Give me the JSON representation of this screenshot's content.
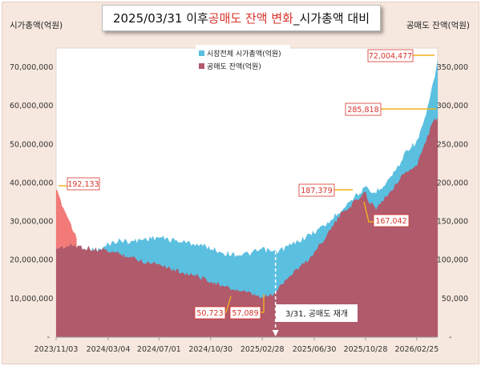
{
  "title": {
    "prefix": "2025/03/31 이후 ",
    "highlight": "공매도 잔액 변화",
    "suffix": "_시가총액 대비"
  },
  "colors": {
    "market_cap": "#5bbfe0",
    "short_balance": "#b05a6c",
    "short_balance_early": "#f27a78",
    "callout": "#f2b01e",
    "callout_text": "#d8342b"
  },
  "chart_data": {
    "type": "area",
    "title": "2025/03/31 이후 공매도 잔액 변화_시가총액 대비",
    "left_axis_label": "시가총액(억원)",
    "right_axis_label": "공매도 잔액(억원)",
    "left_ylim": [
      0,
      75000000
    ],
    "right_ylim": [
      0,
      375000
    ],
    "left_ticks": [
      {
        "value": 10000000,
        "label": "10,000,000"
      },
      {
        "value": 20000000,
        "label": "20,000,000"
      },
      {
        "value": 30000000,
        "label": "30,000,000"
      },
      {
        "value": 40000000,
        "label": "40,000,000"
      },
      {
        "value": 50000000,
        "label": "50,000,000"
      },
      {
        "value": 60000000,
        "label": "60,000,000"
      },
      {
        "value": 70000000,
        "label": "70,000,000"
      }
    ],
    "right_ticks": [
      {
        "value": 50000,
        "label": "50,000"
      },
      {
        "value": 100000,
        "label": "100,000"
      },
      {
        "value": 150000,
        "label": "150,000"
      },
      {
        "value": 200000,
        "label": "200,000"
      },
      {
        "value": 250000,
        "label": "250,000"
      },
      {
        "value": 300000,
        "label": "300,000"
      },
      {
        "value": 350000,
        "label": "350,000"
      }
    ],
    "x_ticks": [
      "2023/11/03",
      "2024/03/04",
      "2024/07/01",
      "2024/10/30",
      "2025/02/28",
      "2025/06/30",
      "2025/10/28",
      "2026/02/25"
    ],
    "x_range": [
      "2023/11/03",
      "2026/04/15"
    ],
    "legend_position": "top-left",
    "series": [
      {
        "name": "시장전체 시가총액(억원)",
        "axis": "left",
        "x": [
          "2023/11/03",
          "2023/11/20",
          "2023/12/15",
          "2024/01/15",
          "2024/02/15",
          "2024/03/04",
          "2024/04/01",
          "2024/05/01",
          "2024/06/01",
          "2024/07/01",
          "2024/08/01",
          "2024/09/01",
          "2024/10/01",
          "2024/10/30",
          "2024/12/01",
          "2025/01/01",
          "2025/02/01",
          "2025/02/28",
          "2025/03/31",
          "2025/04/15",
          "2025/05/15",
          "2025/06/15",
          "2025/06/30",
          "2025/08/01",
          "2025/09/01",
          "2025/10/01",
          "2025/10/28",
          "2025/11/15",
          "2025/12/15",
          "2026/01/15",
          "2026/02/01",
          "2026/02/25",
          "2026/03/15",
          "2026/04/01",
          "2026/04/15"
        ],
        "values": [
          23100000,
          23400000,
          23800000,
          23100000,
          22600000,
          24200000,
          25100000,
          24800000,
          25600000,
          25900000,
          25200000,
          24600000,
          24100000,
          23100000,
          21800000,
          21400000,
          21700000,
          22800000,
          22000000,
          22800000,
          24400000,
          26300000,
          27300000,
          29600000,
          33100000,
          36400000,
          38600000,
          37200000,
          40100000,
          44600000,
          48600000,
          50600000,
          56000000,
          64000000,
          72004477
        ]
      },
      {
        "name": "공매도 잔액(억원)",
        "axis": "right",
        "x": [
          "2023/11/03",
          "2023/11/20",
          "2023/12/05",
          "2023/12/20",
          "2024/01/10",
          "2024/02/01",
          "2024/03/04",
          "2024/04/01",
          "2024/05/01",
          "2024/06/01",
          "2024/07/01",
          "2024/08/01",
          "2024/09/01",
          "2024/10/01",
          "2024/10/30",
          "2024/12/01",
          "2025/01/15",
          "2025/02/28",
          "2025/03/31",
          "2025/04/15",
          "2025/05/15",
          "2025/06/15",
          "2025/06/30",
          "2025/08/01",
          "2025/09/01",
          "2025/10/01",
          "2025/10/28",
          "2025/11/01",
          "2025/11/20",
          "2025/12/15",
          "2026/01/15",
          "2026/02/01",
          "2026/02/25",
          "2026/03/15",
          "2026/04/01",
          "2026/04/15"
        ],
        "values": [
          192133,
          168000,
          150000,
          130000,
          118000,
          115000,
          112000,
          108000,
          103000,
          97000,
          96000,
          88000,
          83000,
          79000,
          73000,
          65000,
          59000,
          50723,
          57089,
          70000,
          86000,
          100000,
          110000,
          135000,
          160000,
          175000,
          187379,
          180000,
          167042,
          182000,
          205000,
          215000,
          222000,
          250000,
          275000,
          285818
        ]
      }
    ],
    "annotations": [
      {
        "label": "192,133",
        "x": "2023/11/03",
        "value": 192133,
        "axis": "right"
      },
      {
        "label": "50,723",
        "x": "2025/02/28",
        "value": 50723,
        "axis": "right"
      },
      {
        "label": "57,089",
        "x": "2025/03/31",
        "value": 57089,
        "axis": "right"
      },
      {
        "label": "187,379",
        "x": "2025/10/28",
        "value": 187379,
        "axis": "right"
      },
      {
        "label": "167,042",
        "x": "2025/11/20",
        "value": 167042,
        "axis": "right"
      },
      {
        "label": "285,818",
        "x": "2026/04/15",
        "value": 285818,
        "axis": "right"
      },
      {
        "label": "72,004,477",
        "x": "2026/04/15",
        "value": 72004477,
        "axis": "left"
      }
    ],
    "marker": {
      "label": "3/31, 공매도 재개",
      "x": "2025/03/31"
    }
  }
}
